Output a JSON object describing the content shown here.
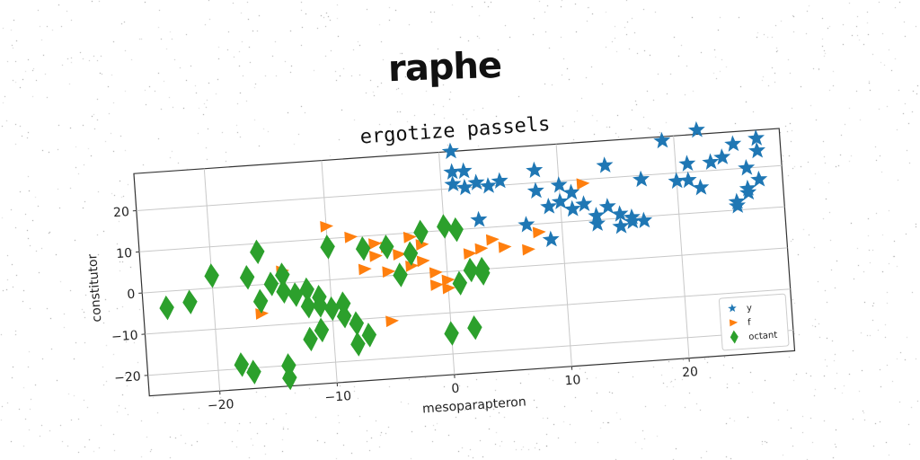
{
  "page_title": "raphe",
  "chart_data": {
    "type": "scatter",
    "title": "ergotize passels",
    "xlabel": "mesoparapteron",
    "ylabel": "constitutor",
    "xlim": [
      -26,
      29
    ],
    "ylim": [
      -25,
      29
    ],
    "xticks": [
      -20,
      -10,
      0,
      10,
      20
    ],
    "yticks": [
      -20,
      -10,
      0,
      10,
      20
    ],
    "grid": true,
    "legend_position": "bottom-right",
    "series": [
      {
        "name": "y",
        "marker": "star",
        "color": "#1f77b4",
        "points": [
          [
            1,
            29
          ],
          [
            1,
            24
          ],
          [
            2,
            24
          ],
          [
            1,
            21
          ],
          [
            2,
            20
          ],
          [
            3,
            21
          ],
          [
            4,
            20
          ],
          [
            5,
            21
          ],
          [
            8,
            23
          ],
          [
            8,
            18
          ],
          [
            10,
            19
          ],
          [
            11,
            17
          ],
          [
            9,
            14
          ],
          [
            10,
            15
          ],
          [
            11,
            13
          ],
          [
            12,
            14
          ],
          [
            14,
            13
          ],
          [
            13,
            11
          ],
          [
            13,
            9
          ],
          [
            15,
            11
          ],
          [
            15,
            8
          ],
          [
            16,
            10
          ],
          [
            16,
            9
          ],
          [
            17,
            9
          ],
          [
            17,
            19
          ],
          [
            14,
            23
          ],
          [
            19,
            28
          ],
          [
            22,
            30
          ],
          [
            21,
            22
          ],
          [
            23,
            22
          ],
          [
            24,
            23
          ],
          [
            25,
            26
          ],
          [
            27,
            27
          ],
          [
            27,
            24
          ],
          [
            26,
            20
          ],
          [
            27,
            17
          ],
          [
            26,
            15
          ],
          [
            26,
            14
          ],
          [
            25,
            12
          ],
          [
            25,
            11
          ],
          [
            21,
            18
          ],
          [
            20,
            18
          ],
          [
            22,
            16
          ],
          [
            3,
            12
          ],
          [
            7,
            10
          ],
          [
            9,
            6
          ]
        ]
      },
      {
        "name": "f",
        "marker": "triangle-right",
        "color": "#ff7f0e",
        "points": [
          [
            -10,
            13
          ],
          [
            -8,
            10
          ],
          [
            -6,
            8
          ],
          [
            -5,
            7
          ],
          [
            -3,
            9
          ],
          [
            -2,
            7
          ],
          [
            -6,
            5
          ],
          [
            -4,
            5
          ],
          [
            -2,
            3
          ],
          [
            -3,
            2
          ],
          [
            -7,
            2
          ],
          [
            -5,
            1
          ],
          [
            -1,
            0
          ],
          [
            0,
            -2
          ],
          [
            -1,
            -3
          ],
          [
            0,
            -4
          ],
          [
            2,
            4
          ],
          [
            3,
            5
          ],
          [
            4,
            7
          ],
          [
            5,
            5
          ],
          [
            7,
            4
          ],
          [
            8,
            8
          ],
          [
            12,
            19
          ],
          [
            -14,
            3
          ],
          [
            -16,
            -7
          ],
          [
            -5,
            -11
          ]
        ]
      },
      {
        "name": "octant",
        "marker": "diamond",
        "color": "#2ca02c",
        "points": [
          [
            -16,
            8
          ],
          [
            -17,
            2
          ],
          [
            -14,
            2
          ],
          [
            -15,
            0
          ],
          [
            -14,
            -2
          ],
          [
            -13,
            -3
          ],
          [
            -12,
            -2
          ],
          [
            -16,
            -4
          ],
          [
            -12,
            -6
          ],
          [
            -11,
            -6
          ],
          [
            -11,
            -4
          ],
          [
            -10,
            -7
          ],
          [
            -9,
            -9
          ],
          [
            -8,
            -11
          ],
          [
            -7,
            -14
          ],
          [
            -8,
            -16
          ],
          [
            -9,
            -6
          ],
          [
            -10,
            8
          ],
          [
            -7,
            7
          ],
          [
            -5,
            7
          ],
          [
            -3,
            5
          ],
          [
            -2,
            10
          ],
          [
            -4,
            0
          ],
          [
            0,
            11
          ],
          [
            1,
            10
          ],
          [
            1,
            -3
          ],
          [
            2,
            0
          ],
          [
            3,
            -1
          ],
          [
            3,
            0
          ],
          [
            -20,
            3
          ],
          [
            -22,
            -3
          ],
          [
            -24,
            -4
          ],
          [
            -18,
            -19
          ],
          [
            -17,
            -21
          ],
          [
            -14,
            -20
          ],
          [
            -14,
            -23
          ],
          [
            -12,
            -14
          ],
          [
            -11,
            -12
          ],
          [
            0,
            -15
          ],
          [
            2,
            -14
          ]
        ]
      }
    ]
  }
}
